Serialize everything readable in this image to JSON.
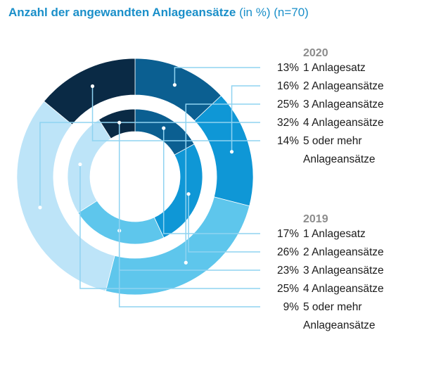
{
  "title": {
    "main": "Anzahl der angewandten Anlageansätze",
    "sub": " (in %) (n=70)"
  },
  "colors": [
    "#0b5f91",
    "#0f97d6",
    "#5ec6ec",
    "#bde4f8",
    "#0a2a45"
  ],
  "leader_color": "#8fd3f1",
  "chart_data": [
    {
      "type": "pie",
      "ring": "outer",
      "year": "2020",
      "categories": [
        "1 Anlagesatz",
        "2 Anlageansätze",
        "3 Anlageansätze",
        "4 Anlageansätze",
        "5 oder mehr Anlageansätze"
      ],
      "values": [
        13,
        16,
        25,
        32,
        14
      ],
      "value_labels": [
        "13%",
        "16%",
        "25%",
        "32%",
        "14%"
      ],
      "label_lines": [
        [
          "1 Anlagesatz"
        ],
        [
          "2 Anlageansätze"
        ],
        [
          "3 Anlageansätze"
        ],
        [
          "4 Anlageansätze"
        ],
        [
          "5 oder mehr",
          "Anlageansätze"
        ]
      ]
    },
    {
      "type": "pie",
      "ring": "inner",
      "year": "2019",
      "categories": [
        "1 Anlagesatz",
        "2 Anlageansätze",
        "3 Anlageansätze",
        "4 Anlageansätze",
        "5 oder mehr Anlageansätze"
      ],
      "values": [
        17,
        26,
        23,
        25,
        9
      ],
      "value_labels": [
        "17%",
        "26%",
        "23%",
        "25%",
        "9%"
      ],
      "label_lines": [
        [
          "1 Anlagesatz"
        ],
        [
          "2 Anlageansätze"
        ],
        [
          "3 Anlageansätze"
        ],
        [
          "4 Anlageansätze"
        ],
        [
          "5 oder mehr",
          "Anlageansätze"
        ]
      ]
    }
  ]
}
